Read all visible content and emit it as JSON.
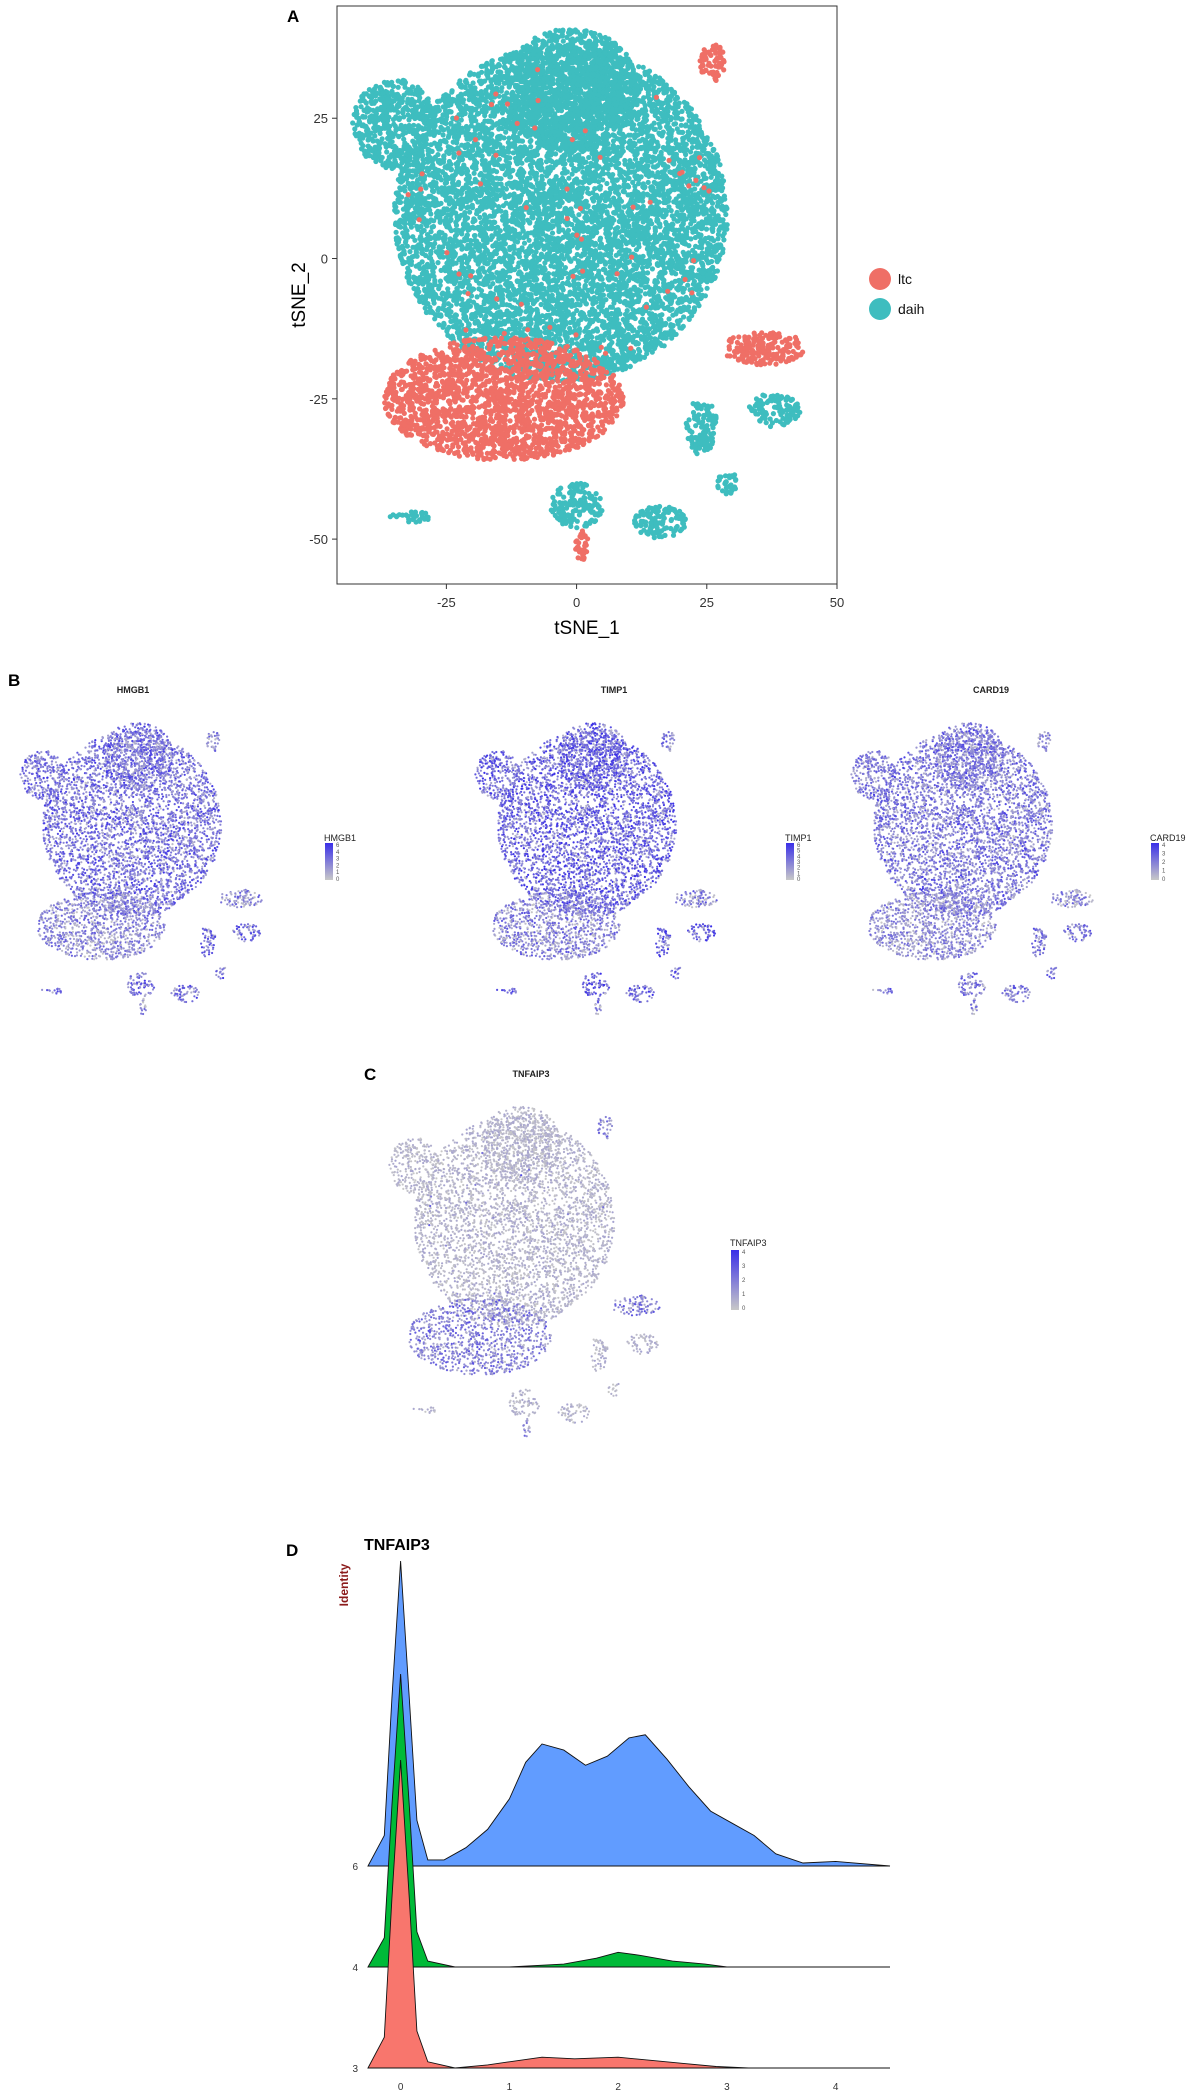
{
  "panels": {
    "a": "A",
    "b": "B",
    "c": "C",
    "d": "D"
  },
  "colors": {
    "ltc": "#ef6f66",
    "daih": "#3ebdbf",
    "expr_low": "#c8c8c8",
    "expr_high": "#3a2fe8",
    "ridge_6": "#619cff",
    "ridge_4": "#00ba38",
    "ridge_3": "#f8766d"
  },
  "chart_data": [
    {
      "type": "scatter",
      "xlabel": "tSNE_1",
      "ylabel": "tSNE_2",
      "xlim": [
        -46,
        50
      ],
      "ylim": [
        -58,
        45
      ],
      "x_ticks": [
        "-25",
        "0",
        "25",
        "50"
      ],
      "y_ticks": [
        "25",
        "0",
        "-25",
        "-50"
      ],
      "x_tick_values": [
        -25,
        0,
        25,
        50
      ],
      "y_tick_values": [
        25,
        0,
        -25,
        -50
      ],
      "grid": false,
      "legend_position": "right",
      "series": [
        {
          "name": "ltc",
          "color": "#ef6f66"
        },
        {
          "name": "daih",
          "color": "#3ebdbf"
        }
      ],
      "clusters": [
        {
          "group": "daih",
          "cx": -3,
          "cy": 8,
          "rx": 32,
          "ry": 30
        },
        {
          "group": "daih",
          "cx": -1,
          "cy": 30,
          "rx": 13,
          "ry": 11
        },
        {
          "group": "daih",
          "cx": -35,
          "cy": 24,
          "rx": 8,
          "ry": 8
        },
        {
          "group": "ltc",
          "cx": -14,
          "cy": -25,
          "rx": 23,
          "ry": 11
        },
        {
          "group": "ltc",
          "cx": 26,
          "cy": 35,
          "rx": 2.5,
          "ry": 3.5
        },
        {
          "group": "ltc",
          "cx": 36,
          "cy": -16,
          "rx": 8,
          "ry": 3
        },
        {
          "group": "daih",
          "cx": 24,
          "cy": -30,
          "rx": 3,
          "ry": 5
        },
        {
          "group": "daih",
          "cx": 38,
          "cy": -27,
          "rx": 5,
          "ry": 3
        },
        {
          "group": "daih",
          "cx": 16,
          "cy": -47,
          "rx": 5,
          "ry": 3
        },
        {
          "group": "daih",
          "cx": 0,
          "cy": -44,
          "rx": 5,
          "ry": 4
        },
        {
          "group": "ltc",
          "cx": 1,
          "cy": -51,
          "rx": 1.5,
          "ry": 3
        },
        {
          "group": "daih",
          "cx": -32,
          "cy": -46,
          "rx": 4,
          "ry": 1
        },
        {
          "group": "daih",
          "cx": 29,
          "cy": -40,
          "rx": 2,
          "ry": 2
        }
      ]
    },
    {
      "type": "scatter",
      "title": "HMGB1",
      "legend_title": "HMGB1",
      "colorbar_ticks": [
        "6",
        "4",
        "3",
        "2",
        "1",
        "0"
      ],
      "colorbar_max": 6
    },
    {
      "type": "scatter",
      "title": "TIMP1",
      "legend_title": "TIMP1",
      "colorbar_ticks": [
        "6",
        "5",
        "4",
        "3",
        "2",
        "1",
        "0"
      ],
      "colorbar_max": 6
    },
    {
      "type": "scatter",
      "title": "CARD19",
      "legend_title": "CARD19",
      "colorbar_ticks": [
        "4",
        "3",
        "2",
        "1",
        "0"
      ],
      "colorbar_max": 4
    },
    {
      "type": "scatter",
      "title": "TNFAIP3",
      "legend_title": "TNFAIP3",
      "colorbar_ticks": [
        "4",
        "3",
        "2",
        "1",
        "0"
      ],
      "colorbar_max": 4
    },
    {
      "type": "area",
      "title": "TNFAIP3",
      "ylabel": "Identity",
      "x_ticks": [
        "0",
        "1",
        "2",
        "3",
        "4"
      ],
      "x_tick_values": [
        0,
        1,
        2,
        3,
        4
      ],
      "xlim": [
        -0.3,
        4.5
      ],
      "series": [
        {
          "name": "6",
          "color": "#619cff",
          "x": [
            -0.3,
            -0.15,
            -0.08,
            0.0,
            0.08,
            0.15,
            0.25,
            0.4,
            0.6,
            0.8,
            1.0,
            1.15,
            1.3,
            1.5,
            1.7,
            1.9,
            2.1,
            2.25,
            2.45,
            2.65,
            2.85,
            3.05,
            3.25,
            3.45,
            3.7,
            4.0,
            4.5
          ],
          "density": [
            0.0,
            0.1,
            0.55,
            1.0,
            0.55,
            0.15,
            0.02,
            0.02,
            0.06,
            0.12,
            0.22,
            0.34,
            0.4,
            0.38,
            0.33,
            0.36,
            0.42,
            0.43,
            0.35,
            0.26,
            0.18,
            0.14,
            0.1,
            0.04,
            0.01,
            0.015,
            0.0
          ]
        },
        {
          "name": "4",
          "color": "#00ba38",
          "x": [
            -0.3,
            -0.15,
            -0.08,
            0.0,
            0.08,
            0.15,
            0.25,
            0.5,
            1.0,
            1.5,
            1.8,
            2.0,
            2.2,
            2.5,
            2.8,
            3.0,
            4.5
          ],
          "density": [
            0.0,
            0.1,
            0.55,
            1.0,
            0.55,
            0.12,
            0.02,
            0.0,
            0.0,
            0.01,
            0.03,
            0.05,
            0.04,
            0.02,
            0.01,
            0.0,
            0.0
          ]
        },
        {
          "name": "3",
          "color": "#f8766d",
          "x": [
            -0.3,
            -0.15,
            -0.08,
            0.0,
            0.08,
            0.15,
            0.25,
            0.5,
            0.8,
            1.0,
            1.3,
            1.6,
            2.0,
            2.3,
            2.6,
            2.9,
            3.2,
            4.5
          ],
          "density": [
            0.0,
            0.1,
            0.55,
            1.0,
            0.55,
            0.12,
            0.02,
            0.0,
            0.01,
            0.02,
            0.035,
            0.03,
            0.035,
            0.025,
            0.015,
            0.005,
            0.0,
            0.0
          ]
        }
      ]
    }
  ]
}
